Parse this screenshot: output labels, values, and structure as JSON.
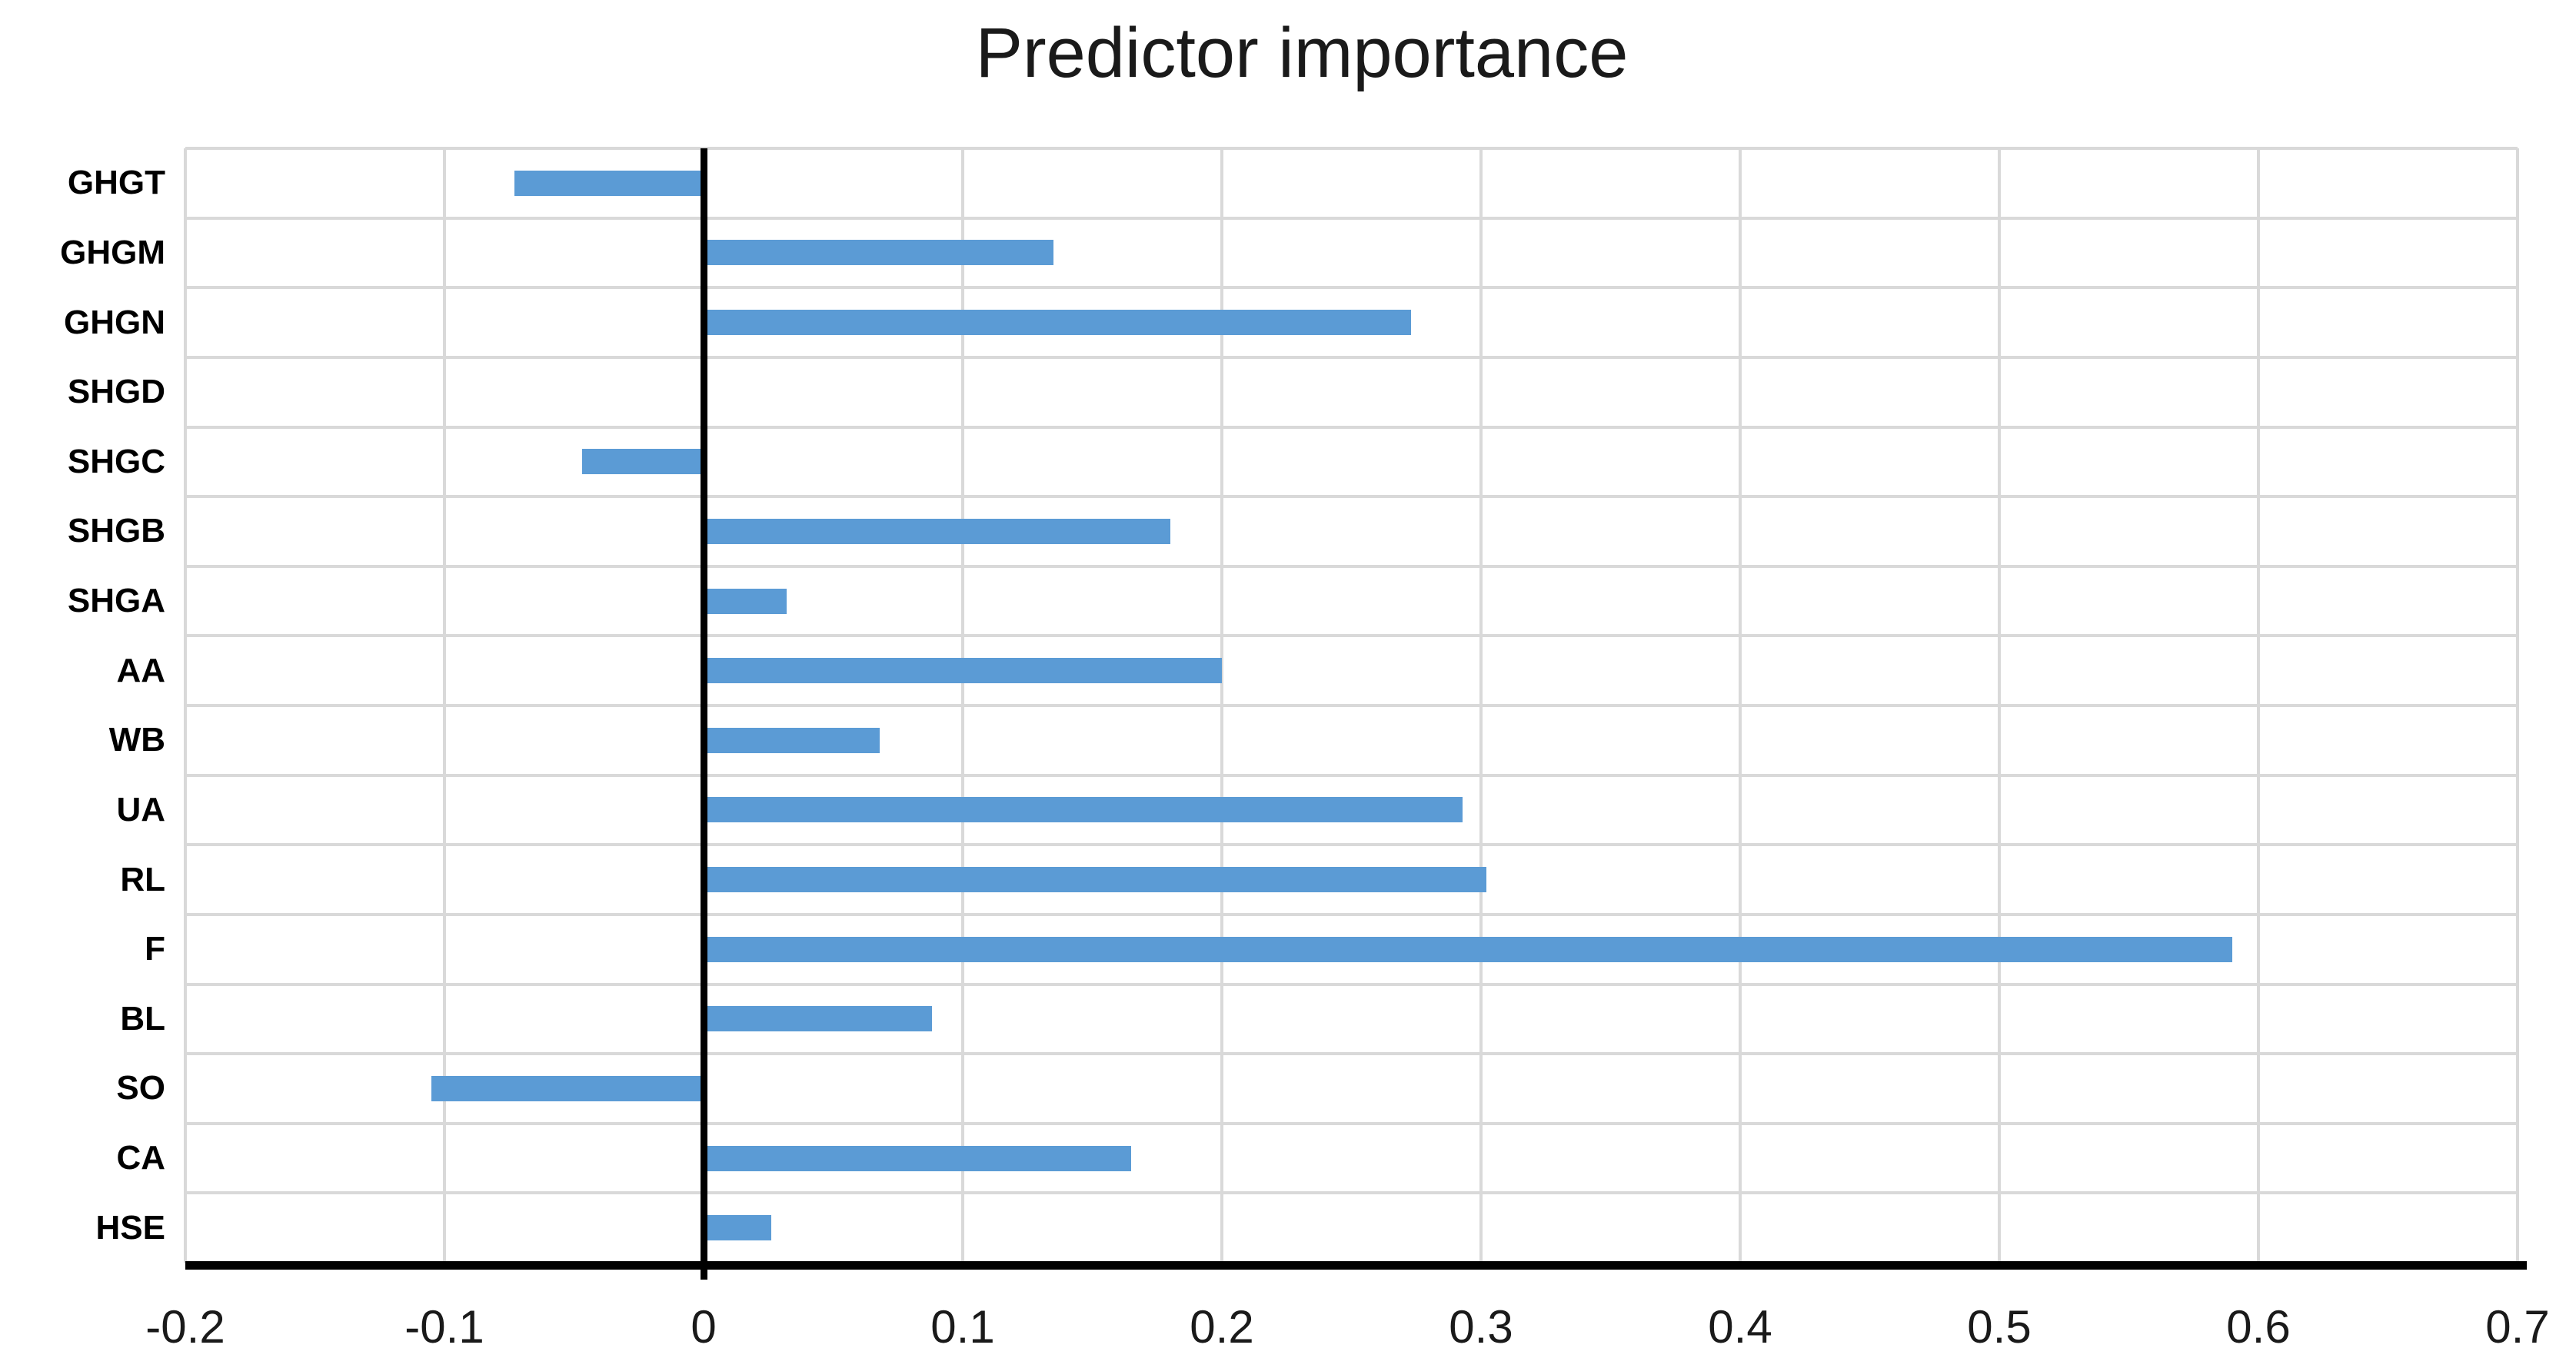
{
  "title": "Predictor importance",
  "chart_data": {
    "type": "bar",
    "orientation": "horizontal",
    "title": "Predictor importance",
    "xlabel": "",
    "ylabel": "",
    "categories": [
      "GHGT",
      "GHGM",
      "GHGN",
      "SHGD",
      "SHGC",
      "SHGB",
      "SHGA",
      "AA",
      "WB",
      "UA",
      "RL",
      "F",
      "BL",
      "SO",
      "CA",
      "HSE"
    ],
    "values": [
      -0.073,
      0.135,
      0.273,
      0,
      -0.047,
      0.18,
      0.032,
      0.2,
      0.068,
      0.293,
      0.302,
      0.59,
      0.088,
      -0.105,
      0.165,
      0.026
    ],
    "xlim": [
      -0.2,
      0.7
    ],
    "xticks": [
      -0.2,
      -0.1,
      0,
      0.1,
      0.2,
      0.3,
      0.4,
      0.5,
      0.6,
      0.7
    ],
    "xtick_labels": [
      "-0.2",
      "-0.1",
      "0",
      "0.1",
      "0.2",
      "0.3",
      "0.4",
      "0.5",
      "0.6",
      "0.7"
    ],
    "legend": "none",
    "grid": "horizontal row gridlines and vertical tick gridlines",
    "bar_color": "#5b9bd5",
    "gridline_color": "#d9d9d9",
    "zero_axis_color": "#000000",
    "bottom_axis_color": "#000000"
  }
}
